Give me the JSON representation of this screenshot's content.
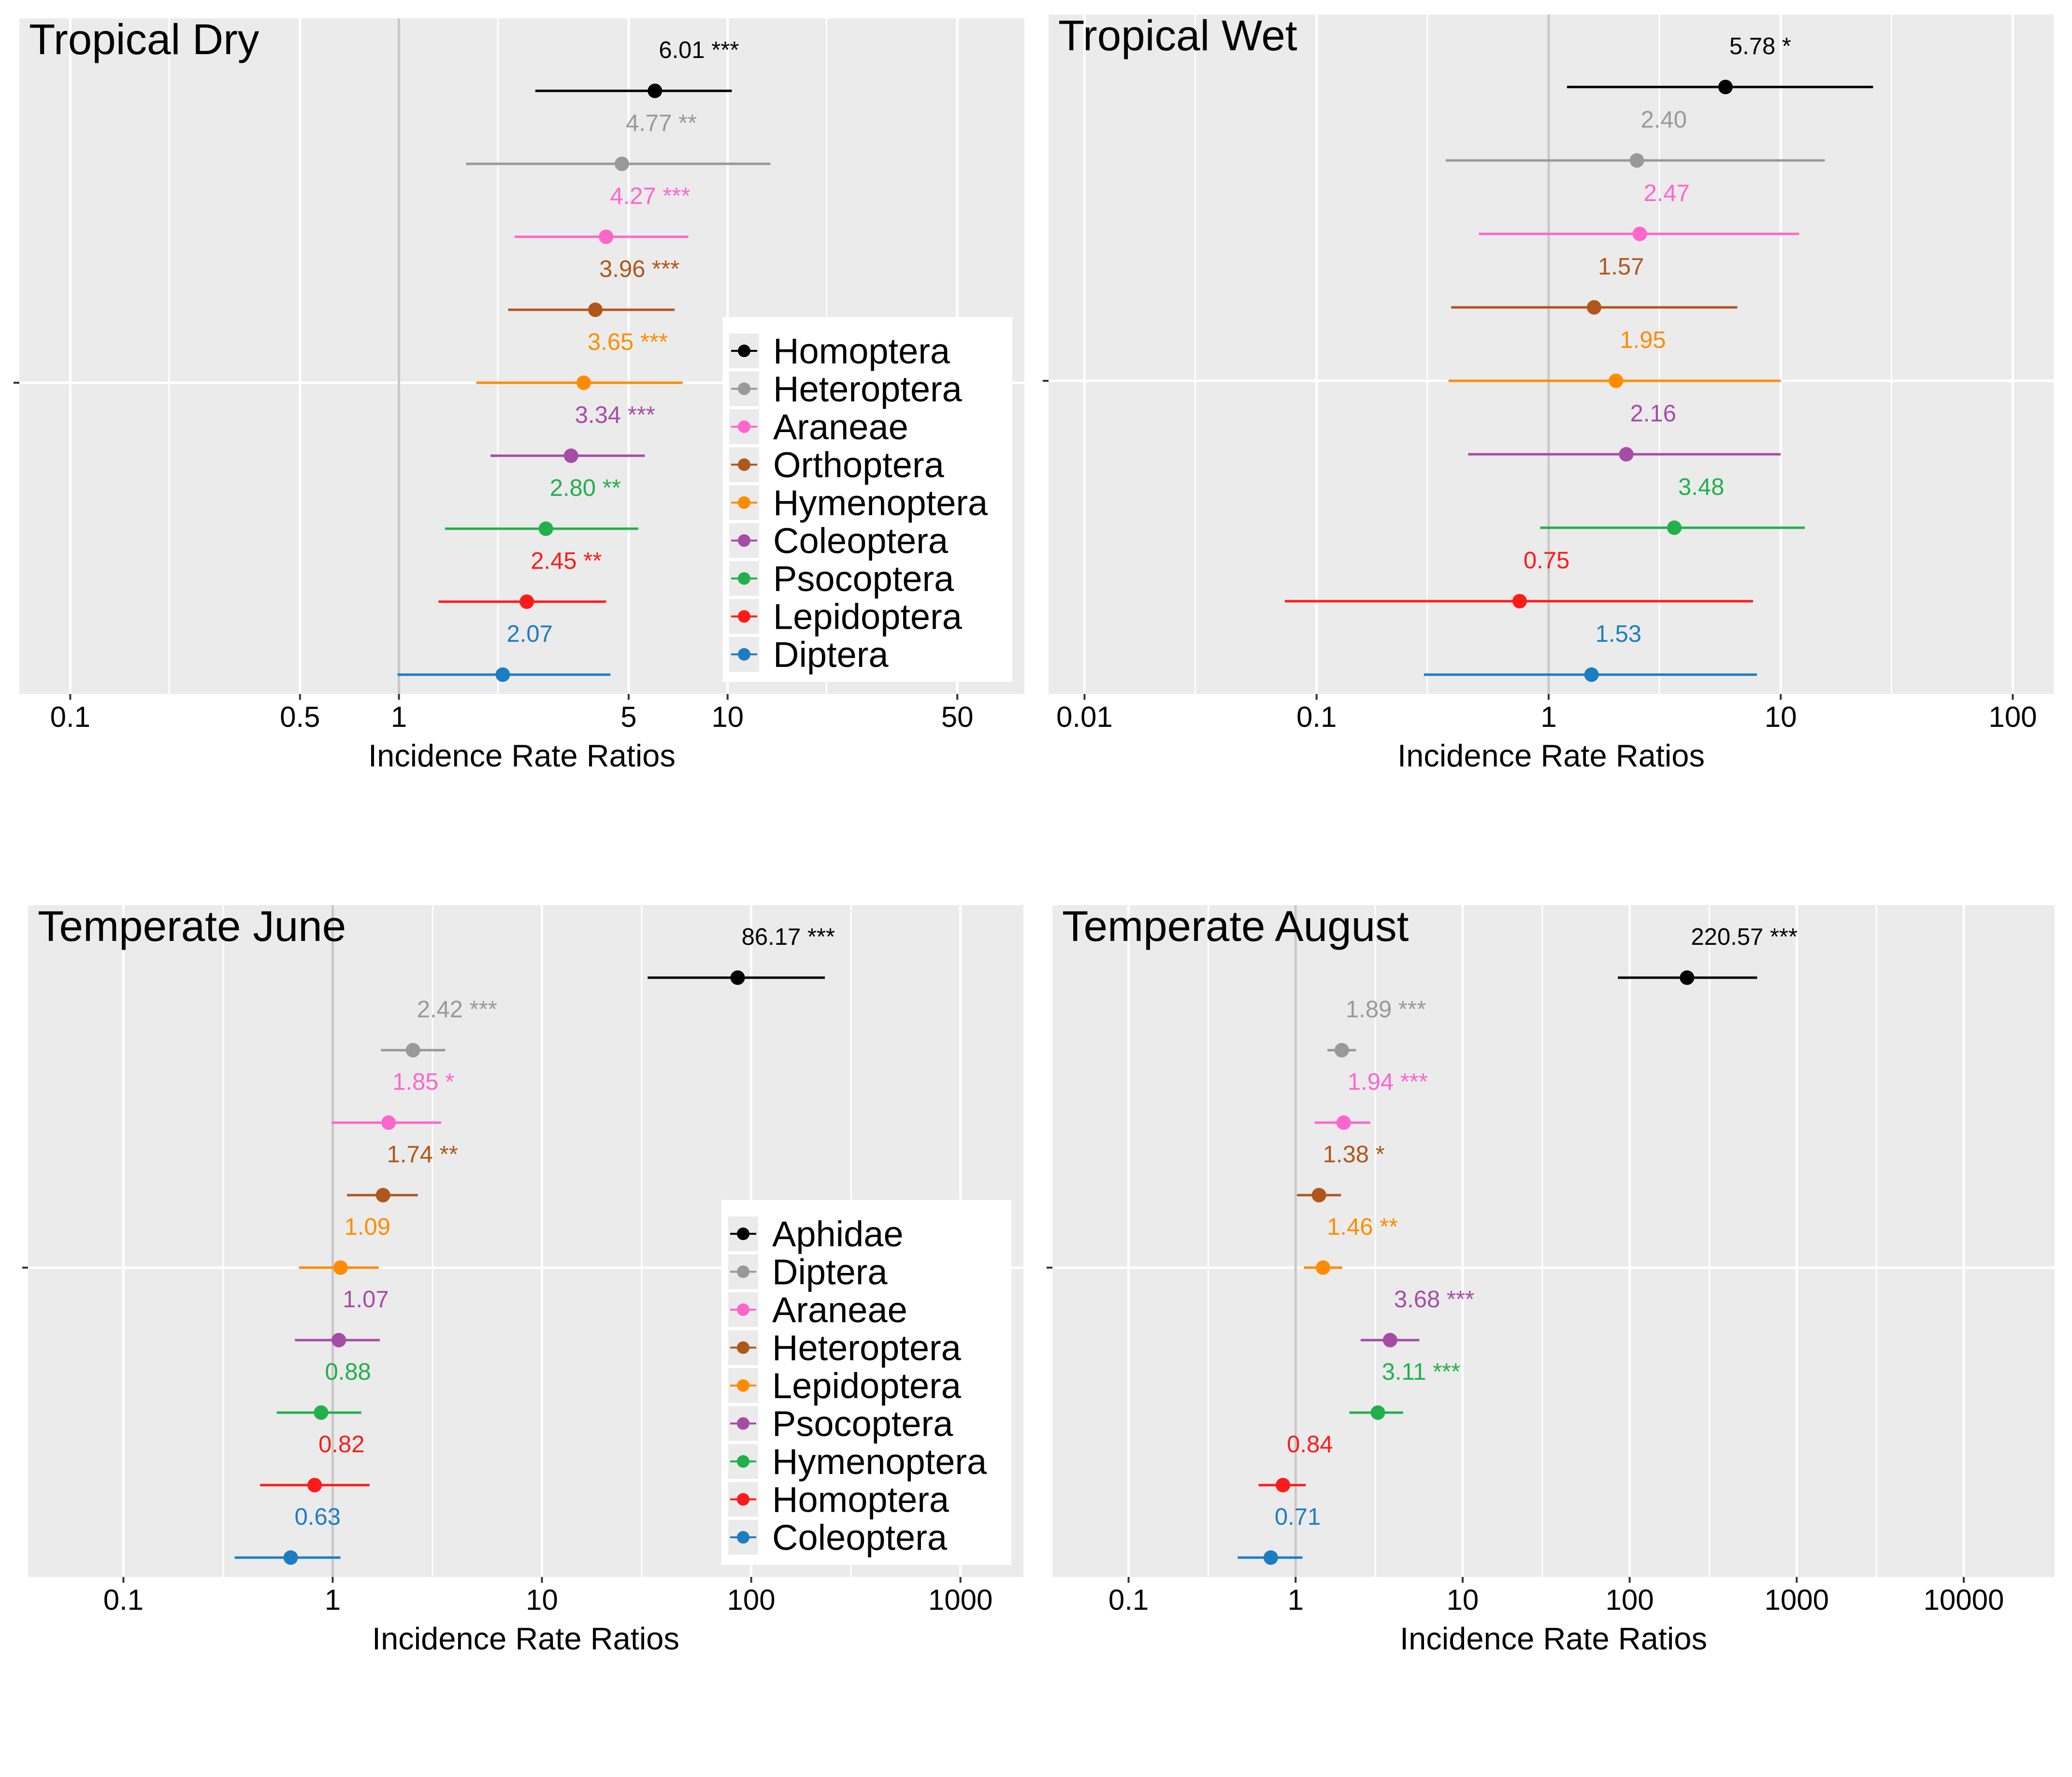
{
  "figure": {
    "colors": {
      "panel_bg": "#EBEBEB",
      "grid": "#FFFFFF",
      "ref_line": "#C8C8C8",
      "legend_bg": "#FFFFFF",
      "series": [
        "#000000",
        "#999999",
        "#FF66CC",
        "#B0561B",
        "#FF8C00",
        "#A64CA6",
        "#21B04B",
        "#FF1A1A",
        "#1C7DC2"
      ]
    }
  },
  "chart_data": [
    {
      "type": "forest",
      "title": "Tropical Dry",
      "xlabel": "Incidence Rate Ratios",
      "xscale": "log",
      "xlim": [
        0.07,
        80
      ],
      "ticks": [
        0.1,
        0.5,
        1,
        5,
        10,
        50
      ],
      "tick_labels": [
        "0.1",
        "0.5",
        "1",
        "5",
        "10",
        "50"
      ],
      "minor_ticks": [
        0.2,
        2,
        20
      ],
      "legend_position": "right",
      "series": [
        {
          "name": "Homoptera",
          "estimate": 6.01,
          "ci": [
            2.6,
            10.3
          ],
          "label": "6.01",
          "sig": "***"
        },
        {
          "name": "Heteroptera",
          "estimate": 4.77,
          "ci": [
            1.6,
            13.5
          ],
          "label": "4.77",
          "sig": "**"
        },
        {
          "name": "Araneae",
          "estimate": 4.27,
          "ci": [
            2.25,
            7.6
          ],
          "label": "4.27",
          "sig": "***"
        },
        {
          "name": "Orthoptera",
          "estimate": 3.96,
          "ci": [
            2.15,
            6.9
          ],
          "label": "3.96",
          "sig": "***"
        },
        {
          "name": "Hymenoptera",
          "estimate": 3.65,
          "ci": [
            1.72,
            7.3
          ],
          "label": "3.65",
          "sig": "***"
        },
        {
          "name": "Coleoptera",
          "estimate": 3.34,
          "ci": [
            1.9,
            5.6
          ],
          "label": "3.34",
          "sig": "***"
        },
        {
          "name": "Psocoptera",
          "estimate": 2.8,
          "ci": [
            1.38,
            5.35
          ],
          "label": "2.80",
          "sig": "**"
        },
        {
          "name": "Lepidoptera",
          "estimate": 2.45,
          "ci": [
            1.32,
            4.27
          ],
          "label": "2.45",
          "sig": "**"
        },
        {
          "name": "Diptera",
          "estimate": 2.07,
          "ci": [
            0.99,
            4.4
          ],
          "label": "2.07",
          "sig": ""
        }
      ]
    },
    {
      "type": "forest",
      "title": "Tropical Wet",
      "xlabel": "Incidence Rate Ratios",
      "xscale": "log",
      "xlim": [
        0.007,
        150
      ],
      "ticks": [
        0.01,
        0.1,
        1,
        10,
        100
      ],
      "tick_labels": [
        "0.01",
        "0.1",
        "1",
        "10",
        "100"
      ],
      "minor_ticks": [
        0.03,
        0.3,
        3,
        30
      ],
      "legend_position": "none",
      "series": [
        {
          "name": "Homoptera",
          "estimate": 5.78,
          "ci": [
            1.2,
            25
          ],
          "label": "5.78",
          "sig": "*"
        },
        {
          "name": "Heteroptera",
          "estimate": 2.4,
          "ci": [
            0.36,
            15.5
          ],
          "label": "2.40",
          "sig": ""
        },
        {
          "name": "Araneae",
          "estimate": 2.47,
          "ci": [
            0.5,
            12
          ],
          "label": "2.47",
          "sig": ""
        },
        {
          "name": "Orthoptera",
          "estimate": 1.57,
          "ci": [
            0.38,
            6.5
          ],
          "label": "1.57",
          "sig": ""
        },
        {
          "name": "Hymenoptera",
          "estimate": 1.95,
          "ci": [
            0.37,
            10
          ],
          "label": "1.95",
          "sig": ""
        },
        {
          "name": "Coleoptera",
          "estimate": 2.16,
          "ci": [
            0.45,
            10
          ],
          "label": "2.16",
          "sig": ""
        },
        {
          "name": "Psocoptera",
          "estimate": 3.48,
          "ci": [
            0.92,
            12.7
          ],
          "label": "3.48",
          "sig": ""
        },
        {
          "name": "Lepidoptera",
          "estimate": 0.75,
          "ci": [
            0.073,
            7.6
          ],
          "label": "0.75",
          "sig": ""
        },
        {
          "name": "Diptera",
          "estimate": 1.53,
          "ci": [
            0.29,
            7.9
          ],
          "label": "1.53",
          "sig": ""
        }
      ]
    },
    {
      "type": "forest",
      "title": "Temperate June",
      "xlabel": "Incidence Rate Ratios",
      "xscale": "log",
      "xlim": [
        0.035,
        2000
      ],
      "ticks": [
        0.1,
        1,
        10,
        100,
        1000
      ],
      "tick_labels": [
        "0.1",
        "1",
        "10",
        "100",
        "1000"
      ],
      "minor_ticks": [
        0.3,
        3,
        30,
        300
      ],
      "legend_position": "right",
      "series": [
        {
          "name": "Aphidae",
          "estimate": 86.17,
          "ci": [
            32,
            225
          ],
          "label": "86.17",
          "sig": "***"
        },
        {
          "name": "Diptera",
          "estimate": 2.42,
          "ci": [
            1.7,
            3.45
          ],
          "label": "2.42",
          "sig": "***"
        },
        {
          "name": "Araneae",
          "estimate": 1.85,
          "ci": [
            0.99,
            3.3
          ],
          "label": "1.85",
          "sig": "*"
        },
        {
          "name": "Heteroptera",
          "estimate": 1.74,
          "ci": [
            1.17,
            2.55
          ],
          "label": "1.74",
          "sig": "**"
        },
        {
          "name": "Lepidoptera",
          "estimate": 1.09,
          "ci": [
            0.69,
            1.66
          ],
          "label": "1.09",
          "sig": ""
        },
        {
          "name": "Psocoptera",
          "estimate": 1.07,
          "ci": [
            0.66,
            1.68
          ],
          "label": "1.07",
          "sig": ""
        },
        {
          "name": "Hymenoptera",
          "estimate": 0.88,
          "ci": [
            0.54,
            1.37
          ],
          "label": "0.88",
          "sig": ""
        },
        {
          "name": "Homoptera",
          "estimate": 0.82,
          "ci": [
            0.45,
            1.5
          ],
          "label": "0.82",
          "sig": ""
        },
        {
          "name": "Coleoptera",
          "estimate": 0.63,
          "ci": [
            0.34,
            1.09
          ],
          "label": "0.63",
          "sig": ""
        }
      ]
    },
    {
      "type": "forest",
      "title": "Temperate August",
      "xlabel": "Incidence Rate Ratios",
      "xscale": "log",
      "xlim": [
        0.035,
        35000
      ],
      "ticks": [
        0.1,
        1,
        10,
        100,
        1000,
        10000
      ],
      "tick_labels": [
        "0.1",
        "1",
        "10",
        "100",
        "1000",
        "10000"
      ],
      "minor_ticks": [
        0.3,
        3,
        30,
        300,
        3000
      ],
      "legend_position": "none",
      "series": [
        {
          "name": "Aphidae",
          "estimate": 220.57,
          "ci": [
            85,
            580
          ],
          "label": "220.57",
          "sig": "***"
        },
        {
          "name": "Diptera",
          "estimate": 1.89,
          "ci": [
            1.55,
            2.3
          ],
          "label": "1.89",
          "sig": "***"
        },
        {
          "name": "Araneae",
          "estimate": 1.94,
          "ci": [
            1.3,
            2.8
          ],
          "label": "1.94",
          "sig": "***"
        },
        {
          "name": "Heteroptera",
          "estimate": 1.38,
          "ci": [
            1.02,
            1.87
          ],
          "label": "1.38",
          "sig": "*"
        },
        {
          "name": "Lepidoptera",
          "estimate": 1.46,
          "ci": [
            1.12,
            1.9
          ],
          "label": "1.46",
          "sig": "**"
        },
        {
          "name": "Psocoptera",
          "estimate": 3.68,
          "ci": [
            2.45,
            5.5
          ],
          "label": "3.68",
          "sig": "***"
        },
        {
          "name": "Hymenoptera",
          "estimate": 3.11,
          "ci": [
            2.1,
            4.4
          ],
          "label": "3.11",
          "sig": "***"
        },
        {
          "name": "Homoptera",
          "estimate": 0.84,
          "ci": [
            0.6,
            1.15
          ],
          "label": "0.84",
          "sig": ""
        },
        {
          "name": "Coleoptera",
          "estimate": 0.71,
          "ci": [
            0.45,
            1.1
          ],
          "label": "0.71",
          "sig": ""
        }
      ]
    }
  ]
}
